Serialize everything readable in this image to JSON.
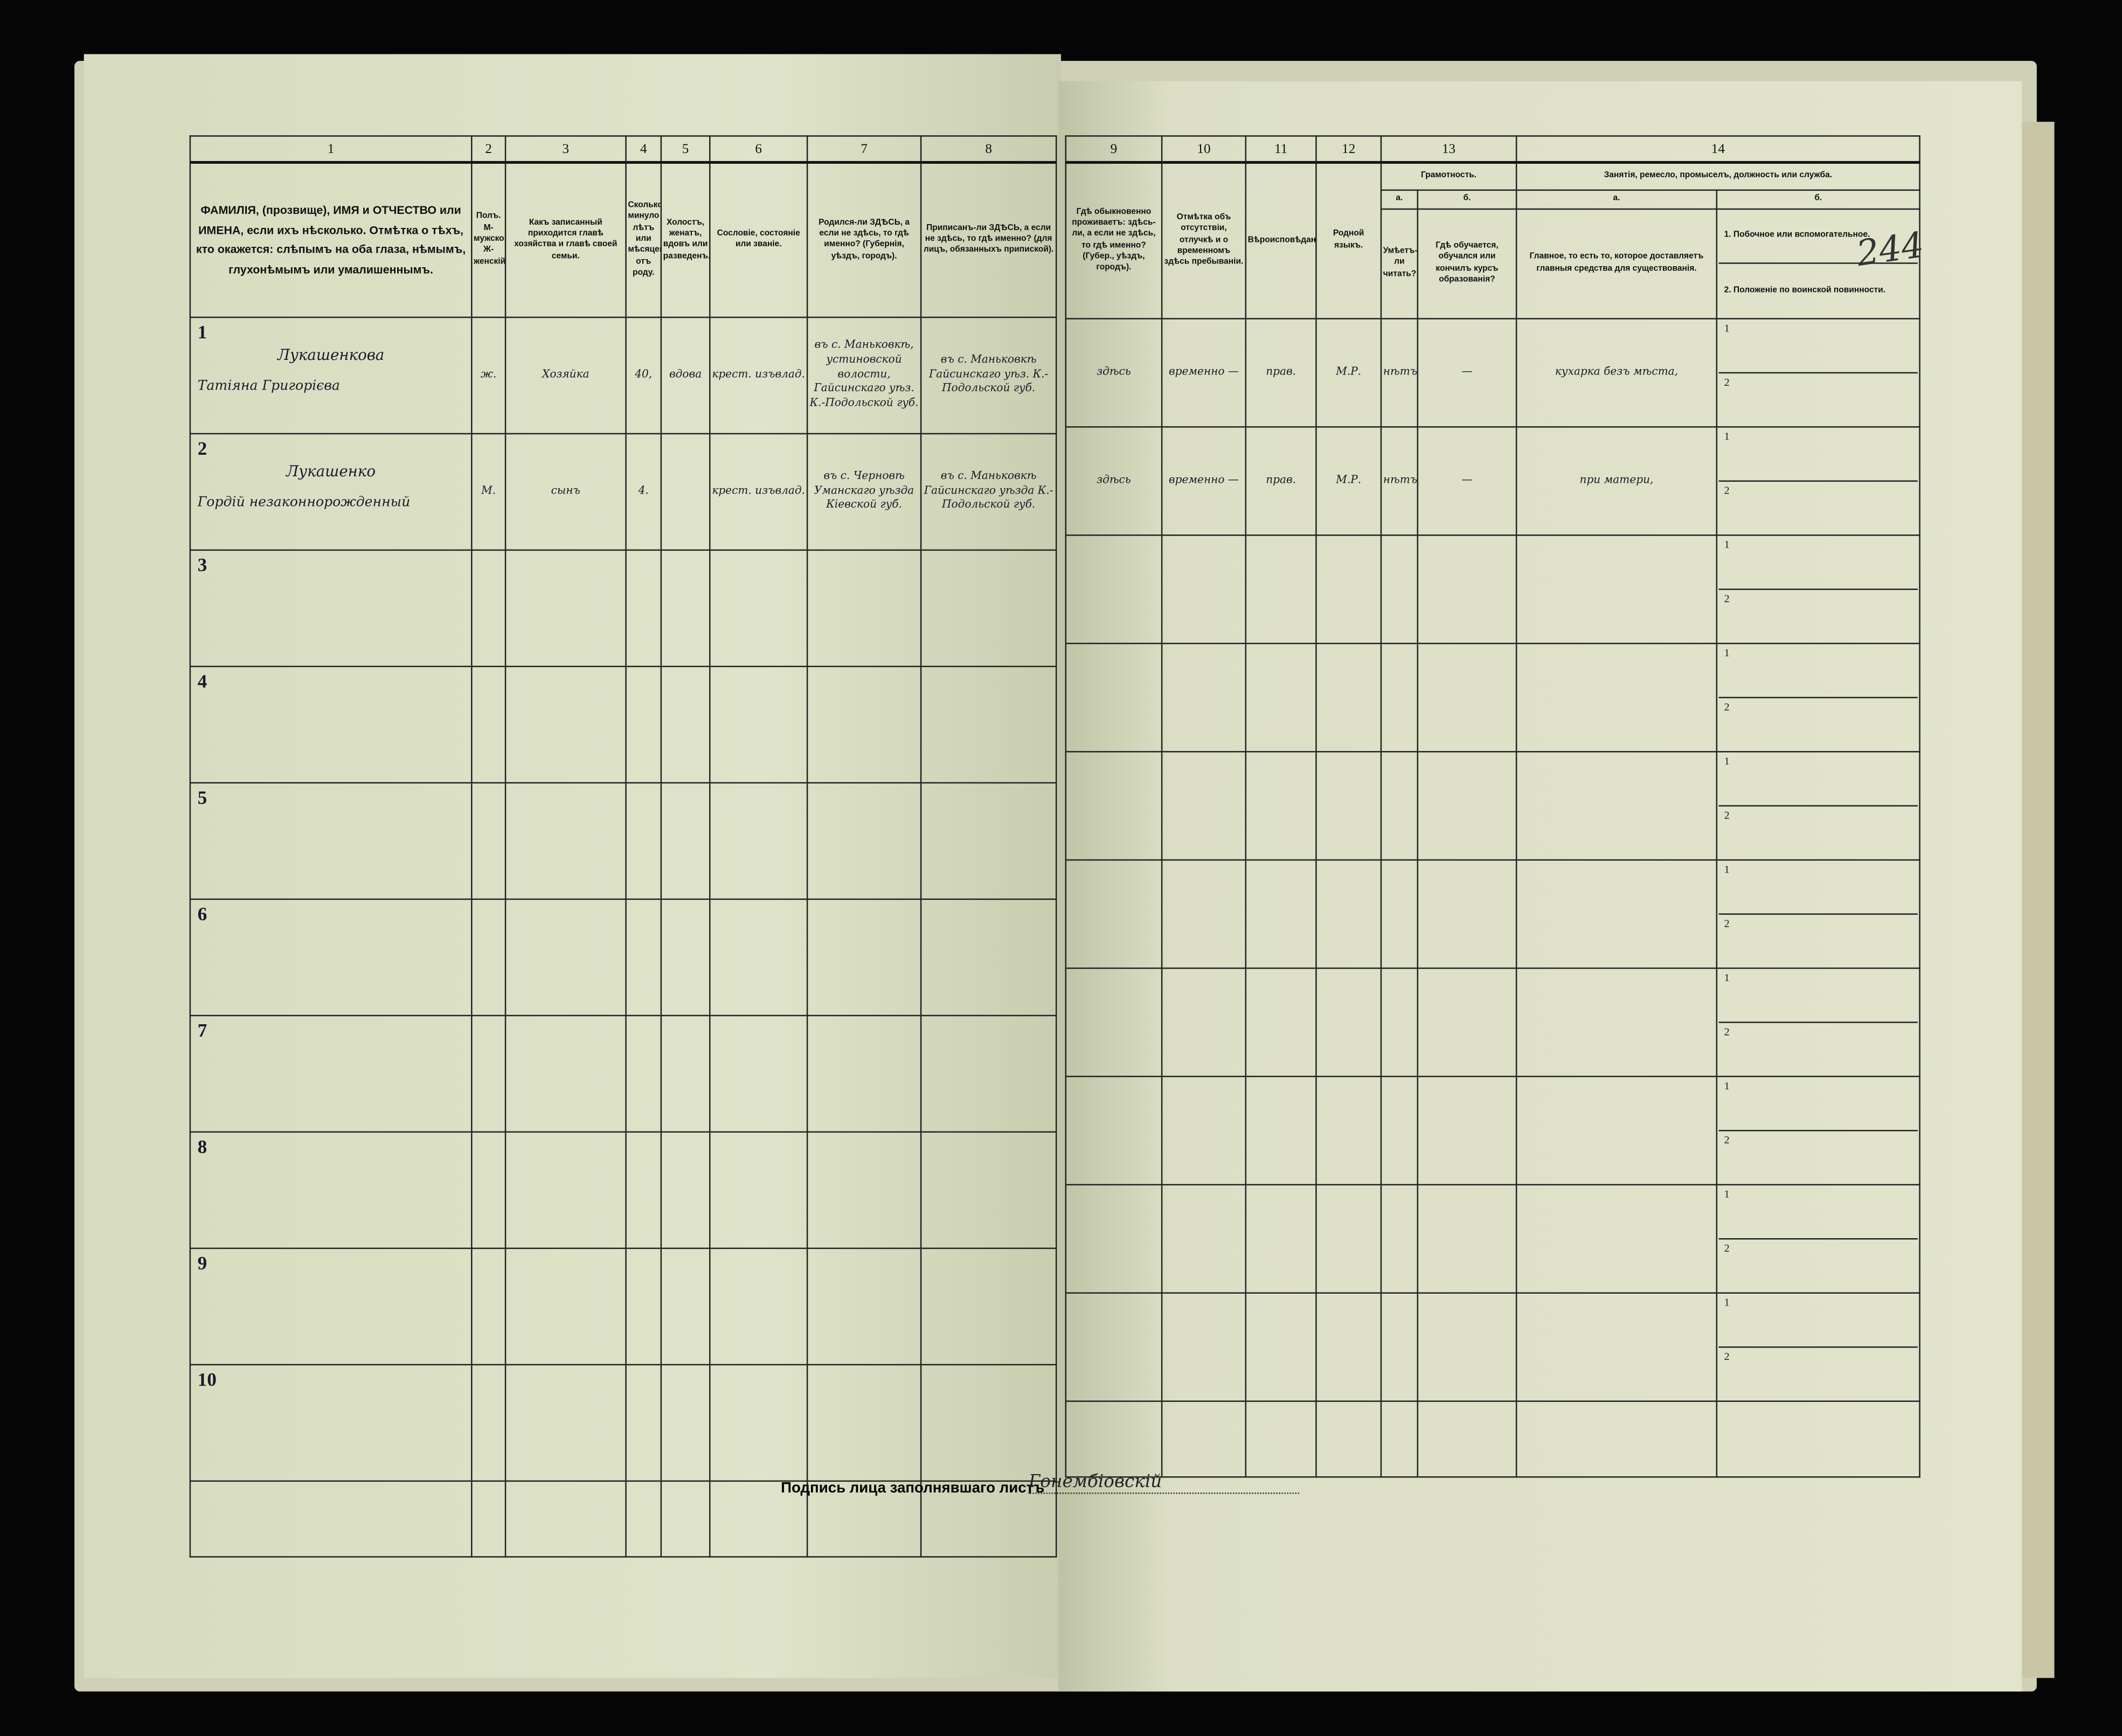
{
  "form": {
    "col_numbers": [
      "1",
      "2",
      "3",
      "4",
      "5",
      "6",
      "7",
      "8",
      "9",
      "10",
      "11",
      "12",
      "13",
      "14"
    ],
    "headers": {
      "c1": "ФАМИЛІЯ, (прозвище), ИМЯ и ОТЧЕСТВО или ИМЕНА, если ихъ нѣсколько. Отмѣтка о тѣхъ, кто окажется: слѣпымъ на оба глаза, нѣмымъ, глухонѣмымъ или умалишеннымъ.",
      "c2": "Полъ. М-мужской. Ж-женскій.",
      "c3": "Какъ записанный приходится главѣ хозяйства и главѣ своей семьи.",
      "c4": "Сколько минуло лѣтъ или мѣсяцевъ отъ роду.",
      "c5": "Холостъ, женатъ, вдовъ или разведенъ.",
      "c6": "Сословіе, состояніе или званіе.",
      "c7": "Родился-ли ЗДѢСЬ, а если не здѣсь, то гдѣ именно? (Губернія, уѣздъ, городъ).",
      "c8": "Приписанъ-ли ЗДѢСЬ, а если не здѣсь, то гдѣ именно? (для лицъ, обязанныхъ припиской).",
      "c9": "Гдѣ обыкновенно проживаетъ: здѣсь-ли, а если не здѣсь, то гдѣ именно? (Губер., уѣздъ, городъ).",
      "c10": "Отмѣтка объ отсутствіи, отлучкѣ и о временномъ здѣсь пребываніи.",
      "c11": "Вѣроисповѣданіе.",
      "c12": "Родной языкъ.",
      "c13": "Грамотность.",
      "c13a_letter": "а.",
      "c13a": "Умѣетъ-ли читать?",
      "c13b_letter": "б.",
      "c13b": "Гдѣ обучается, обучался или кончилъ курсъ образованія?",
      "c14": "Занятія, ремесло, промыселъ, должность или служба.",
      "c14a_letter": "а.",
      "c14a": "Главное, то есть то, которое доставляетъ главныя средства для существованія.",
      "c14b_letter": "б.",
      "c14b1": "1. Побочное или вспомогательное.",
      "c14b2": "2. Положеніе по воинской повинности."
    },
    "rows": [
      {
        "n": "1",
        "surname": "Лукашенкова",
        "given": "Татіяна Григорієва",
        "sex": "ж.",
        "relation": "Хозяйка",
        "age": "40,",
        "marital": "вдова",
        "estate": "крест. изъвлад.",
        "born": "въ с. Маньковкѣ, устиновской волости, Гайсинскаго уѣз. К.-Подольской губ.",
        "registered": "въ с. Маньковкѣ Гайсинскаго уѣз. К.-Подольской губ.",
        "residence": "здѣсь",
        "absence": "временно —",
        "religion": "прав.",
        "language": "М.Р.",
        "literate": "нѣтъ",
        "school": "—",
        "occupation": "кухарка безъ мѣста,",
        "mil1": "1",
        "mil2": "2"
      },
      {
        "n": "2",
        "surname": "Лукашенко",
        "given": "Гордій незаконнорожденный",
        "sex": "М.",
        "relation": "сынъ",
        "age": "4.",
        "marital": "",
        "estate": "крест. изъвлад.",
        "born": "въ с. Черновѣ Уманскаго уѣзда Кіевской губ.",
        "registered": "въ с. Маньковкѣ Гайсинскаго уѣзда К.-Подольской губ.",
        "residence": "здѣсь",
        "absence": "временно —",
        "religion": "прав.",
        "language": "М.Р.",
        "literate": "нѣтъ",
        "school": "—",
        "occupation": "при матери,",
        "mil1": "1",
        "mil2": "2"
      },
      {
        "n": "3",
        "mil1": "1",
        "mil2": "2"
      },
      {
        "n": "4",
        "mil1": "1",
        "mil2": "2"
      },
      {
        "n": "5",
        "mil1": "1",
        "mil2": "2"
      },
      {
        "n": "6",
        "mil1": "1",
        "mil2": "2"
      },
      {
        "n": "7",
        "mil1": "1",
        "mil2": "2"
      },
      {
        "n": "8",
        "mil1": "1",
        "mil2": "2"
      },
      {
        "n": "9",
        "mil1": "1",
        "mil2": "2"
      },
      {
        "n": "10",
        "mil1": "1",
        "mil2": "2"
      }
    ],
    "signature_label": "Подпись лица заполнявшаго листъ",
    "signature": "Гонембіовскій",
    "page_number": "244"
  },
  "colors": {
    "paper": "#dfe3c9",
    "ink": "#111111",
    "background": "#000000"
  }
}
